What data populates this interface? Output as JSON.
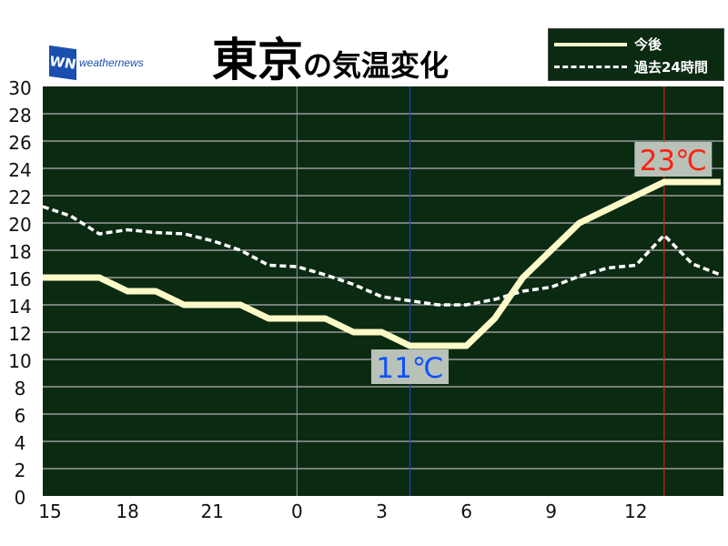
{
  "title": {
    "main": "東京",
    "sub": "の気温変化"
  },
  "logo": {
    "mark": "WN",
    "text": "weathernews"
  },
  "colors": {
    "plot_bg": "#0b2a12",
    "grid": "#9a9a9a",
    "future": "#fdfac8",
    "past": "#ffffff",
    "max_line": "#e02010",
    "min_line": "#2040d0",
    "max_text": "#ff2010",
    "min_text": "#1050ff",
    "label_bg": "#b8c2b8"
  },
  "chart_data": {
    "type": "line",
    "x": [
      "15",
      "16",
      "17",
      "18",
      "19",
      "20",
      "21",
      "22",
      "23",
      "0",
      "1",
      "2",
      "3",
      "4",
      "5",
      "6",
      "7",
      "8",
      "9",
      "10",
      "11",
      "12",
      "13",
      "14",
      "15"
    ],
    "xtick_labels": [
      "15",
      "18",
      "21",
      "0",
      "3",
      "6",
      "9",
      "12"
    ],
    "ylim": [
      0,
      30
    ],
    "yticks": [
      0,
      2,
      4,
      6,
      8,
      10,
      12,
      14,
      16,
      18,
      20,
      22,
      24,
      26,
      28,
      30
    ],
    "grid": true,
    "legend_placement": "top-right",
    "series": [
      {
        "name": "今後",
        "style": "solid",
        "values": [
          16,
          16,
          16,
          15,
          15,
          14,
          14,
          14,
          13,
          13,
          13,
          12,
          12,
          11,
          11,
          11,
          13,
          16,
          18,
          20,
          21,
          22,
          23,
          23,
          23
        ]
      },
      {
        "name": "過去24時間",
        "style": "dashed",
        "values": [
          21.2,
          20.5,
          19.2,
          19.5,
          19.3,
          19.2,
          18.7,
          18.0,
          16.9,
          16.8,
          16.2,
          15.5,
          14.6,
          14.3,
          14.0,
          14.0,
          14.4,
          15.0,
          15.3,
          16.1,
          16.7,
          16.9,
          19.1,
          17.0,
          16.2
        ]
      }
    ],
    "annotations": [
      {
        "text": "23℃",
        "x": "13",
        "value": 23,
        "kind": "max"
      },
      {
        "text": "11℃",
        "x": "4",
        "value": 11,
        "kind": "min"
      }
    ]
  }
}
